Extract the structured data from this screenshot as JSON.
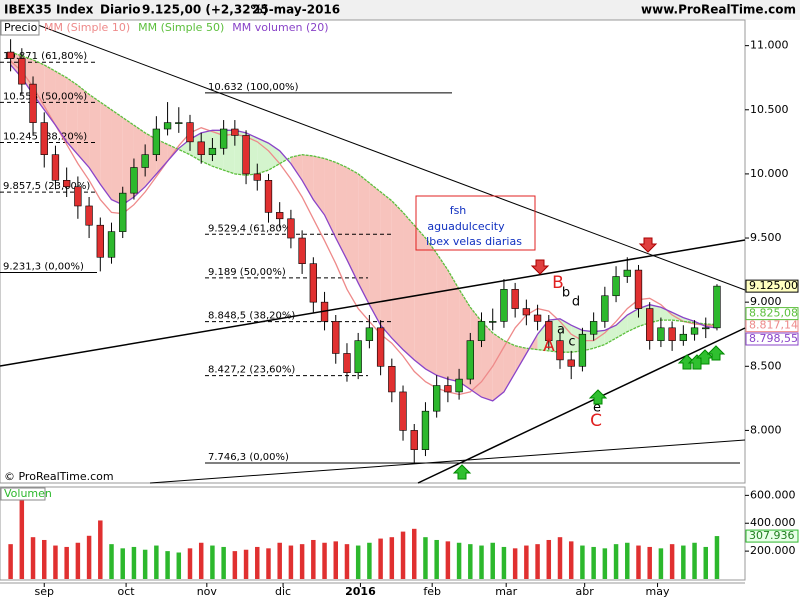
{
  "chart_data": {
    "type": "candlestick",
    "title": "IBEX35 Index",
    "period": "Diario",
    "quote": "9.125,00 (+2,32%)",
    "date": "25-may-2016",
    "site": "www.ProRealTime.com",
    "price_label": "Precio",
    "copyright": "© ProRealTime.com",
    "up_color": "#2db82d",
    "down_color": "#e03030",
    "close_label": "9.125,00",
    "x": [
      0,
      1,
      2,
      3,
      4,
      5,
      6,
      7,
      8,
      9,
      10,
      11,
      12,
      13,
      14,
      15,
      16,
      17,
      18,
      19,
      20,
      21,
      22,
      23,
      24,
      25,
      26,
      27,
      28,
      29,
      30,
      31,
      32,
      33,
      34,
      35,
      36,
      37,
      38,
      39,
      40,
      41,
      42,
      43,
      44,
      45,
      46,
      47,
      48,
      49,
      50,
      51,
      52,
      53,
      54,
      55,
      56,
      57,
      58,
      59,
      60,
      61,
      62,
      63
    ],
    "xlim": [
      -0.5,
      65.5
    ],
    "xticks": [
      {
        "value": 3,
        "label": "sep"
      },
      {
        "value": 10.3,
        "label": "oct"
      },
      {
        "value": 17.5,
        "label": "nov"
      },
      {
        "value": 24.3,
        "label": "dic"
      },
      {
        "value": 31.2,
        "label": "2016"
      },
      {
        "value": 37.6,
        "label": "feb"
      },
      {
        "value": 44.2,
        "label": "mar"
      },
      {
        "value": 51.2,
        "label": "abr"
      },
      {
        "value": 57.7,
        "label": "may"
      }
    ],
    "ylim": [
      7590,
      11200
    ],
    "yticks": [
      {
        "value": 8000,
        "label": "8.000"
      },
      {
        "value": 8500,
        "label": "8.500"
      },
      {
        "value": 9000,
        "label": "9.000"
      },
      {
        "value": 9500,
        "label": "9.500"
      },
      {
        "value": 10000,
        "label": "10.000"
      },
      {
        "value": 10500,
        "label": "10.500"
      },
      {
        "value": 11000,
        "label": "11.000"
      }
    ],
    "open": [
      10950,
      10900,
      10700,
      10400,
      10150,
      9950,
      9900,
      9750,
      9600,
      9350,
      9550,
      9850,
      10050,
      10150,
      10350,
      10400,
      10400,
      10250,
      10150,
      10200,
      10350,
      10300,
      10000,
      9950,
      9700,
      9650,
      9500,
      9300,
      9000,
      8850,
      8600,
      8450,
      8700,
      8800,
      8500,
      8300,
      8000,
      7850,
      8150,
      8350,
      8300,
      8400,
      8700,
      8850,
      8850,
      9100,
      8950,
      8900,
      8850,
      8700,
      8550,
      8500,
      8750,
      8850,
      9050,
      9200,
      9250,
      8950,
      8700,
      8800,
      8700,
      8750,
      8800,
      8800
    ],
    "high": [
      11050,
      10980,
      10760,
      10480,
      10220,
      10050,
      9980,
      9820,
      9660,
      9620,
      9900,
      10120,
      10230,
      10450,
      10560,
      10520,
      10460,
      10320,
      10280,
      10420,
      10420,
      10340,
      10080,
      10000,
      9780,
      9720,
      9560,
      9350,
      9080,
      8900,
      8680,
      8760,
      8900,
      8860,
      8560,
      8350,
      8050,
      8220,
      8430,
      8420,
      8480,
      8760,
      8920,
      8950,
      9180,
      9150,
      9020,
      8980,
      8900,
      8760,
      8620,
      8800,
      8920,
      9120,
      9280,
      9350,
      9290,
      9000,
      8880,
      8850,
      8820,
      8860,
      8880,
      9140
    ],
    "low": [
      10800,
      10620,
      10300,
      10050,
      9880,
      9820,
      9650,
      9500,
      9240,
      9300,
      9500,
      9800,
      9980,
      10100,
      10300,
      10320,
      10180,
      10080,
      10100,
      10150,
      10220,
      9920,
      9870,
      9620,
      9580,
      9420,
      9220,
      8920,
      8780,
      8520,
      8380,
      8400,
      8640,
      8430,
      8220,
      7920,
      7750,
      7800,
      8100,
      8220,
      8240,
      8360,
      8650,
      8780,
      8800,
      8880,
      8820,
      8780,
      8630,
      8480,
      8400,
      8460,
      8700,
      8800,
      9000,
      9150,
      8880,
      8630,
      8650,
      8620,
      8660,
      8700,
      8720,
      8780
    ],
    "close": [
      10900,
      10700,
      10400,
      10150,
      9950,
      9900,
      9750,
      9600,
      9350,
      9550,
      9850,
      10050,
      10150,
      10350,
      10400,
      10400,
      10250,
      10150,
      10200,
      10350,
      10300,
      10000,
      9950,
      9700,
      9650,
      9500,
      9300,
      9000,
      8850,
      8600,
      8450,
      8700,
      8800,
      8500,
      8300,
      8000,
      7850,
      8150,
      8350,
      8300,
      8400,
      8700,
      8850,
      8850,
      9100,
      8950,
      8900,
      8850,
      8700,
      8550,
      8500,
      8750,
      8850,
      9050,
      9200,
      9250,
      8950,
      8700,
      8800,
      8700,
      8750,
      8800,
      8800,
      9125
    ],
    "series": [
      {
        "name": "MM (Simple 10)",
        "color": "#ee8a8a",
        "last_label": "8.817,14",
        "values": [
          10880,
          10800,
          10680,
          10530,
          10380,
          10230,
          10080,
          9950,
          9800,
          9700,
          9690,
          9760,
          9860,
          9980,
          10100,
          10220,
          10320,
          10360,
          10330,
          10300,
          10310,
          10290,
          10250,
          10180,
          10080,
          9960,
          9820,
          9650,
          9480,
          9300,
          9100,
          8950,
          8850,
          8750,
          8680,
          8580,
          8460,
          8380,
          8330,
          8300,
          8280,
          8300,
          8380,
          8500,
          8650,
          8800,
          8900,
          8950,
          8930,
          8850,
          8750,
          8700,
          8700,
          8760,
          8850,
          8950,
          9020,
          9030,
          8980,
          8900,
          8850,
          8830,
          8820,
          8817.14
        ]
      },
      {
        "name": "MM (Simple 50)",
        "color": "#5cbf3c",
        "last_label": "8.825,08",
        "values": [
          10950,
          10920,
          10890,
          10850,
          10800,
          10750,
          10690,
          10620,
          10560,
          10500,
          10440,
          10380,
          10320,
          10270,
          10230,
          10190,
          10150,
          10100,
          10060,
          10030,
          10000,
          9990,
          10000,
          10030,
          10080,
          10130,
          10150,
          10140,
          10120,
          10090,
          10050,
          10000,
          9930,
          9860,
          9790,
          9700,
          9600,
          9500,
          9380,
          9250,
          9100,
          8960,
          8850,
          8760,
          8700,
          8660,
          8640,
          8630,
          8620,
          8610,
          8610,
          8620,
          8640,
          8670,
          8720,
          8770,
          8810,
          8840,
          8860,
          8860,
          8850,
          8840,
          8830,
          8825.08
        ]
      },
      {
        "name": "MM volumen (20)",
        "color": "#8a44c8",
        "last_label": "8.798,55",
        "values": [
          10850,
          10750,
          10620,
          10500,
          10380,
          10250,
          10150,
          10050,
          9920,
          9800,
          9760,
          9820,
          9900,
          10000,
          10100,
          10200,
          10270,
          10320,
          10340,
          10340,
          10340,
          10320,
          10280,
          10240,
          10180,
          10080,
          9950,
          9800,
          9680,
          9500,
          9330,
          9150,
          8980,
          8820,
          8720,
          8630,
          8550,
          8480,
          8430,
          8400,
          8380,
          8320,
          8260,
          8230,
          8300,
          8450,
          8600,
          8750,
          8860,
          8870,
          8820,
          8780,
          8770,
          8780,
          8820,
          8900,
          8950,
          8980,
          8960,
          8920,
          8880,
          8850,
          8810,
          8798.55
        ]
      }
    ],
    "fib_levels": [
      {
        "value": 10871,
        "label": "10.871 (61,80%)"
      },
      {
        "value": 10558,
        "label": "10.558 (50,00%)"
      },
      {
        "value": 10245,
        "label": "10.245 (38,20%)"
      },
      {
        "value": 9857.5,
        "label": "9.857,5 (23,60%)"
      },
      {
        "value": 9231.3,
        "label": "9.231,3 (0,00%)"
      },
      {
        "value": 10632,
        "label": "10.632 (100,00%)"
      },
      {
        "value": 9529.4,
        "label": "9.529,4 (61,80%)"
      },
      {
        "value": 9189,
        "label": "9.189 (50,00%)"
      },
      {
        "value": 8848.5,
        "label": "8.848,5 (38,20%)"
      },
      {
        "value": 8427.2,
        "label": "8.427,2 (23,60%)"
      },
      {
        "value": 7746.3,
        "label": "7.746,3 (0,00%)"
      }
    ],
    "annotation_box": [
      "fsh",
      "aguadulcecity",
      "Ibex velas diarias"
    ],
    "wave_labels": [
      "A",
      "B",
      "C",
      "a",
      "b",
      "c",
      "d",
      "e"
    ],
    "volume": {
      "title": "Volumen",
      "ylim": [
        0,
        660000
      ],
      "last_label": "307.936",
      "yticks": [
        {
          "value": 200000,
          "label": "200.000"
        },
        {
          "value": 400000,
          "label": "400.000"
        },
        {
          "value": 600000,
          "label": "600.000"
        }
      ],
      "values": [
        250000,
        620000,
        300000,
        280000,
        240000,
        230000,
        260000,
        310000,
        420000,
        250000,
        220000,
        230000,
        210000,
        240000,
        200000,
        190000,
        220000,
        260000,
        240000,
        230000,
        200000,
        210000,
        230000,
        220000,
        260000,
        240000,
        250000,
        280000,
        260000,
        270000,
        250000,
        240000,
        260000,
        290000,
        300000,
        340000,
        360000,
        300000,
        280000,
        270000,
        260000,
        250000,
        240000,
        260000,
        230000,
        220000,
        240000,
        250000,
        280000,
        300000,
        270000,
        240000,
        230000,
        220000,
        250000,
        260000,
        240000,
        230000,
        220000,
        250000,
        240000,
        260000,
        230000,
        307936
      ]
    }
  }
}
